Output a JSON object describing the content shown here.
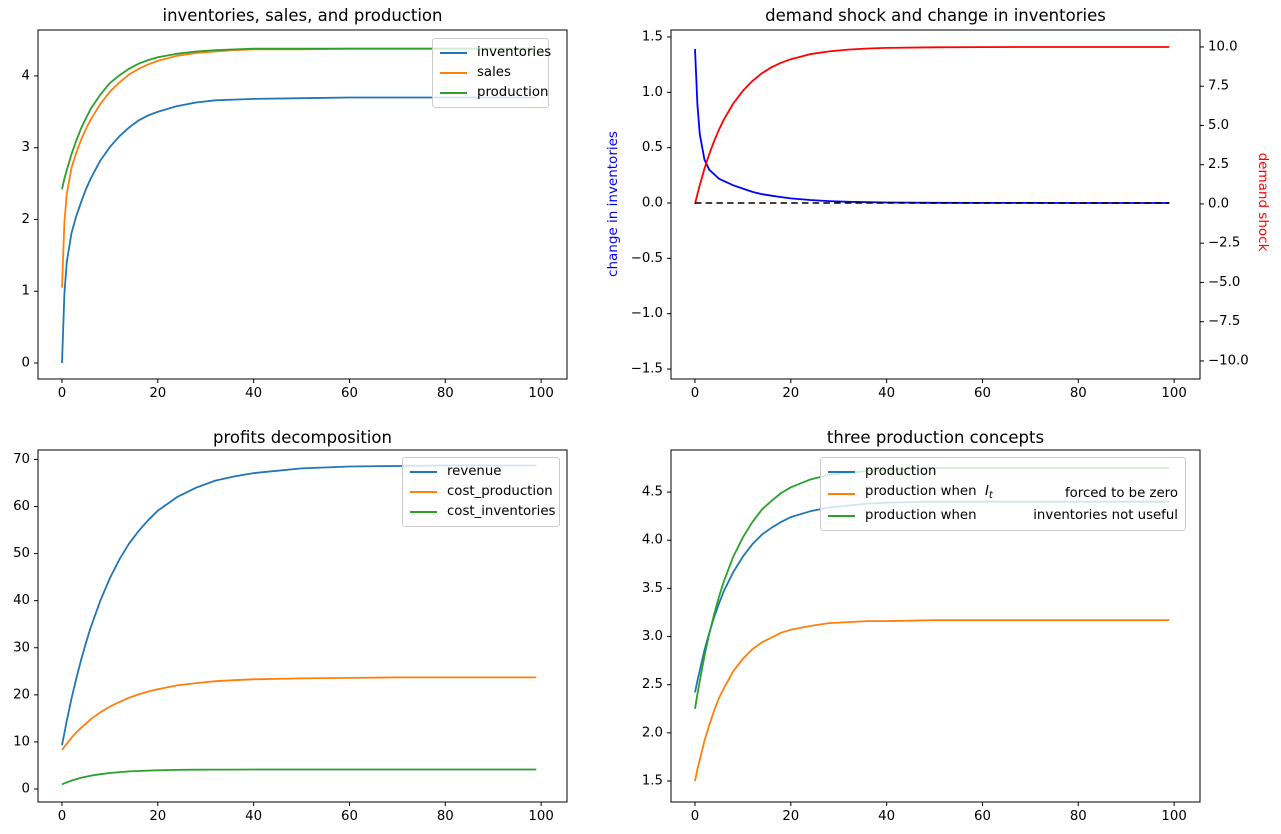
{
  "figure": {
    "background": "#ffffff"
  },
  "palette": {
    "mpl_blue": "#1f77b4",
    "mpl_orange": "#ff7f0e",
    "mpl_green": "#2ca02c",
    "pure_blue": "#0000ff",
    "pure_red": "#ff0000",
    "black": "#000000",
    "legend_border": "#cccccc",
    "legend_bg": "rgba(255,255,255,0.8)"
  },
  "chart_data": [
    {
      "id": "top-left",
      "type": "line",
      "title": "inventories, sales, and production",
      "xlabel": "",
      "ylabel": "",
      "xlim": [
        -5.0,
        105.4
      ],
      "ylim": [
        -0.223,
        4.64
      ],
      "grid": false,
      "xticks": {
        "values": [
          0,
          20,
          40,
          60,
          80,
          100
        ],
        "labels": [
          "0",
          "20",
          "40",
          "60",
          "80",
          "100"
        ]
      },
      "yticks": {
        "values": [
          0,
          1,
          2,
          3,
          4
        ],
        "labels": [
          "0",
          "1",
          "2",
          "3",
          "4"
        ]
      },
      "legend": {
        "loc": "upper right",
        "items": [
          {
            "color": "#1f77b4",
            "left": [
              {
                "t": "inventories"
              }
            ]
          },
          {
            "color": "#ff7f0e",
            "left": [
              {
                "t": "sales"
              }
            ]
          },
          {
            "color": "#2ca02c",
            "left": [
              {
                "t": "production"
              }
            ]
          }
        ]
      },
      "x": [
        0,
        0.5,
        1,
        2,
        3,
        4,
        5,
        6,
        8,
        10,
        12,
        14,
        16,
        18,
        20,
        24,
        28,
        32,
        36,
        40,
        50,
        60,
        70,
        80,
        90,
        99
      ],
      "series": [
        {
          "name": "inventories",
          "color": "#1f77b4",
          "y": [
            0,
            0.97,
            1.41,
            1.81,
            2.05,
            2.24,
            2.42,
            2.57,
            2.82,
            3.01,
            3.16,
            3.28,
            3.38,
            3.45,
            3.5,
            3.58,
            3.63,
            3.66,
            3.67,
            3.68,
            3.69,
            3.7,
            3.7,
            3.7,
            3.7,
            3.7
          ]
        },
        {
          "name": "sales",
          "color": "#ff7f0e",
          "y": [
            1.05,
            1.96,
            2.36,
            2.72,
            2.93,
            3.11,
            3.26,
            3.39,
            3.61,
            3.78,
            3.91,
            4.02,
            4.1,
            4.16,
            4.21,
            4.28,
            4.32,
            4.34,
            4.36,
            4.37,
            4.37,
            4.38,
            4.38,
            4.38,
            4.38,
            4.38
          ]
        },
        {
          "name": "production",
          "color": "#2ca02c",
          "y": [
            2.42,
            2.57,
            2.69,
            2.91,
            3.1,
            3.27,
            3.41,
            3.54,
            3.74,
            3.9,
            4.01,
            4.1,
            4.17,
            4.22,
            4.26,
            4.31,
            4.34,
            4.36,
            4.37,
            4.38,
            4.38,
            4.38,
            4.38,
            4.38,
            4.38,
            4.38
          ]
        }
      ]
    },
    {
      "id": "top-right",
      "type": "line",
      "title": "demand shock and change in inventories",
      "ylabel_left": {
        "text": "change in inventories",
        "color": "#0000ff"
      },
      "ylabel_right": {
        "text": "demand shock",
        "color": "#ff0000"
      },
      "xlim": [
        -5.0,
        105.4
      ],
      "ylim": [
        -1.59,
        1.563
      ],
      "ylim_right": [
        -11.15,
        11.08
      ],
      "grid": false,
      "xticks": {
        "values": [
          0,
          20,
          40,
          60,
          80,
          100
        ],
        "labels": [
          "0",
          "20",
          "40",
          "60",
          "80",
          "100"
        ]
      },
      "yticks": {
        "values": [
          -1.5,
          -1.0,
          -0.5,
          0.0,
          0.5,
          1.0,
          1.5
        ],
        "labels": [
          "−1.5",
          "−1.0",
          "−0.5",
          "0.0",
          "0.5",
          "1.0",
          "1.5"
        ]
      },
      "yticks_right": {
        "values": [
          -10,
          -7.5,
          -5,
          -2.5,
          0,
          2.5,
          5,
          7.5,
          10
        ],
        "labels": [
          "−10.0",
          "−7.5",
          "−5.0",
          "−2.5",
          "0.0",
          "2.5",
          "5.0",
          "7.5",
          "10.0"
        ]
      },
      "x": [
        0,
        0.5,
        1,
        2,
        3,
        4,
        5,
        6,
        8,
        10,
        12,
        14,
        16,
        18,
        20,
        24,
        28,
        32,
        36,
        40,
        50,
        60,
        70,
        80,
        90,
        99
      ],
      "series": [
        {
          "name": "change in inventories",
          "color": "#0000ff",
          "axis": "left",
          "y": [
            1.39,
            0.89,
            0.62,
            0.39,
            0.3,
            0.26,
            0.22,
            0.2,
            0.16,
            0.13,
            0.1,
            0.08,
            0.066,
            0.053,
            0.042,
            0.027,
            0.017,
            0.011,
            0.007,
            0.005,
            0.002,
            0.001,
            0.001,
            0,
            0,
            0
          ]
        },
        {
          "name": "demand shock",
          "color": "#ff0000",
          "axis": "right",
          "y": [
            0,
            0.62,
            1.2,
            2.26,
            3.19,
            4.0,
            4.72,
            5.36,
            6.4,
            7.21,
            7.84,
            8.33,
            8.71,
            9.0,
            9.22,
            9.54,
            9.72,
            9.83,
            9.9,
            9.94,
            9.98,
            9.99,
            10,
            10,
            10,
            10
          ]
        },
        {
          "name": "zero line",
          "color": "#000000",
          "axis": "left",
          "dash": [
            6.5,
            4.2
          ],
          "x_override": [
            0,
            99
          ],
          "y": [
            0,
            0
          ]
        }
      ]
    },
    {
      "id": "bottom-left",
      "type": "line",
      "title": "profits decomposition",
      "xlim": [
        -5.0,
        105.4
      ],
      "ylim": [
        -2.76,
        72.0
      ],
      "grid": false,
      "xticks": {
        "values": [
          0,
          20,
          40,
          60,
          80,
          100
        ],
        "labels": [
          "0",
          "20",
          "40",
          "60",
          "80",
          "100"
        ]
      },
      "yticks": {
        "values": [
          0,
          10,
          20,
          30,
          40,
          50,
          60,
          70
        ],
        "labels": [
          "0",
          "10",
          "20",
          "30",
          "40",
          "50",
          "60",
          "70"
        ]
      },
      "legend": {
        "loc": "upper right",
        "items": [
          {
            "color": "#1f77b4",
            "left": [
              {
                "t": "revenue"
              }
            ]
          },
          {
            "color": "#ff7f0e",
            "left": [
              {
                "t": "cost_production"
              }
            ]
          },
          {
            "color": "#2ca02c",
            "left": [
              {
                "t": "cost_inventories"
              }
            ]
          }
        ]
      },
      "x": [
        0,
        0.5,
        1,
        2,
        3,
        4,
        5,
        6,
        8,
        10,
        12,
        14,
        16,
        18,
        20,
        24,
        28,
        32,
        36,
        40,
        50,
        60,
        70,
        80,
        90,
        99
      ],
      "series": [
        {
          "name": "revenue",
          "color": "#1f77b4",
          "y": [
            9.3,
            11.9,
            14.5,
            19.2,
            23.5,
            27.4,
            31.0,
            34.3,
            40.0,
            44.8,
            48.8,
            52.1,
            54.8,
            57.1,
            59.1,
            62.0,
            64.0,
            65.5,
            66.4,
            67.1,
            68.1,
            68.5,
            68.6,
            68.7,
            68.7,
            68.7
          ]
        },
        {
          "name": "cost_production",
          "color": "#ff7f0e",
          "y": [
            8.3,
            9.0,
            9.6,
            10.9,
            12.0,
            13.0,
            13.9,
            14.8,
            16.3,
            17.5,
            18.5,
            19.4,
            20.1,
            20.7,
            21.2,
            22.0,
            22.5,
            22.9,
            23.1,
            23.3,
            23.5,
            23.6,
            23.7,
            23.7,
            23.7,
            23.7
          ]
        },
        {
          "name": "cost_inventories",
          "color": "#2ca02c",
          "y": [
            1.0,
            1.22,
            1.42,
            1.79,
            2.1,
            2.38,
            2.61,
            2.82,
            3.15,
            3.4,
            3.59,
            3.73,
            3.83,
            3.91,
            3.97,
            4.05,
            4.09,
            4.12,
            4.13,
            4.14,
            4.15,
            4.15,
            4.15,
            4.15,
            4.15,
            4.15
          ]
        }
      ]
    },
    {
      "id": "bottom-right",
      "type": "line",
      "title": "three production concepts",
      "xlim": [
        -5.0,
        105.4
      ],
      "ylim": [
        1.282,
        4.937
      ],
      "grid": false,
      "xticks": {
        "values": [
          0,
          20,
          40,
          60,
          80,
          100
        ],
        "labels": [
          "0",
          "20",
          "40",
          "60",
          "80",
          "100"
        ]
      },
      "yticks": {
        "values": [
          1.5,
          2.0,
          2.5,
          3.0,
          3.5,
          4.0,
          4.5
        ],
        "labels": [
          "1.5",
          "2.0",
          "2.5",
          "3.0",
          "3.5",
          "4.0",
          "4.5"
        ]
      },
      "legend": {
        "loc": "upper right wide",
        "items": [
          {
            "color": "#1f77b4",
            "left": [
              {
                "t": "production"
              }
            ]
          },
          {
            "color": "#ff7f0e",
            "left": [
              {
                "t": "production when  "
              },
              {
                "t": "I",
                "math": true
              },
              {
                "t": "t",
                "sub": true
              }
            ],
            "right": "forced to be zero"
          },
          {
            "color": "#2ca02c",
            "left": [
              {
                "t": "production when"
              }
            ],
            "right": "inventories not useful"
          }
        ]
      },
      "x": [
        0,
        0.5,
        1,
        2,
        3,
        4,
        5,
        6,
        8,
        10,
        12,
        14,
        16,
        18,
        20,
        24,
        28,
        32,
        36,
        40,
        50,
        60,
        70,
        80,
        90,
        99
      ],
      "series": [
        {
          "name": "production",
          "color": "#1f77b4",
          "y": [
            2.42,
            2.54,
            2.65,
            2.86,
            3.04,
            3.2,
            3.34,
            3.47,
            3.67,
            3.83,
            3.96,
            4.06,
            4.13,
            4.19,
            4.24,
            4.3,
            4.34,
            4.36,
            4.38,
            4.39,
            4.4,
            4.4,
            4.4,
            4.4,
            4.4,
            4.4
          ]
        },
        {
          "name": "production when I_t forced to be zero",
          "color": "#ff7f0e",
          "y": [
            1.5,
            1.62,
            1.72,
            1.92,
            2.08,
            2.23,
            2.36,
            2.46,
            2.64,
            2.77,
            2.87,
            2.94,
            2.99,
            3.04,
            3.07,
            3.11,
            3.14,
            3.15,
            3.16,
            3.16,
            3.17,
            3.17,
            3.17,
            3.17,
            3.17,
            3.17
          ]
        },
        {
          "name": "production when inventories not useful",
          "color": "#2ca02c",
          "y": [
            2.25,
            2.4,
            2.54,
            2.8,
            3.03,
            3.23,
            3.41,
            3.57,
            3.83,
            4.03,
            4.19,
            4.32,
            4.41,
            4.49,
            4.55,
            4.63,
            4.68,
            4.7,
            4.72,
            4.73,
            4.75,
            4.75,
            4.75,
            4.75,
            4.75,
            4.75
          ]
        }
      ]
    }
  ]
}
